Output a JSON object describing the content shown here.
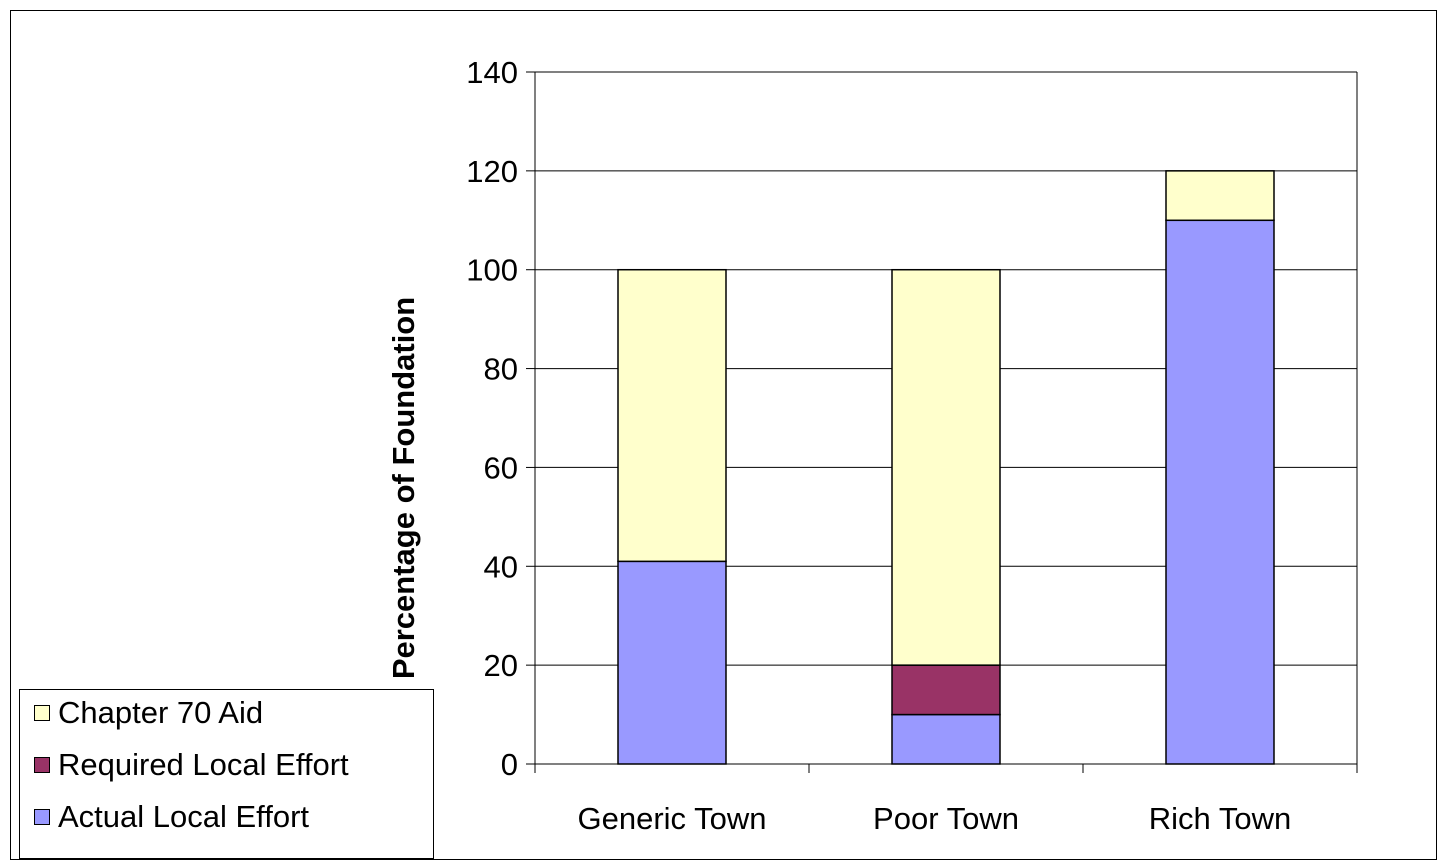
{
  "chart_data": {
    "type": "bar",
    "stacked": true,
    "categories": [
      "Generic Town",
      "Poor Town",
      "Rich Town"
    ],
    "series": [
      {
        "name": "Actual Local Effort",
        "color": "#9999ff",
        "values": [
          41,
          10,
          110
        ]
      },
      {
        "name": "Required Local Effort",
        "color": "#993366",
        "values": [
          0,
          10,
          0
        ]
      },
      {
        "name": "Chapter 70 Aid",
        "color": "#ffffcc",
        "values": [
          59,
          80,
          10
        ]
      }
    ],
    "ylabel": "Percentage of Foundation",
    "xlabel": "",
    "title": "",
    "ylim": [
      0,
      140
    ],
    "yticks": [
      0,
      20,
      40,
      60,
      80,
      100,
      120,
      140
    ],
    "grid": true,
    "legend_position": "bottom-left",
    "legend_order": [
      "Chapter 70 Aid",
      "Required Local Effort",
      "Actual Local Effort"
    ]
  }
}
